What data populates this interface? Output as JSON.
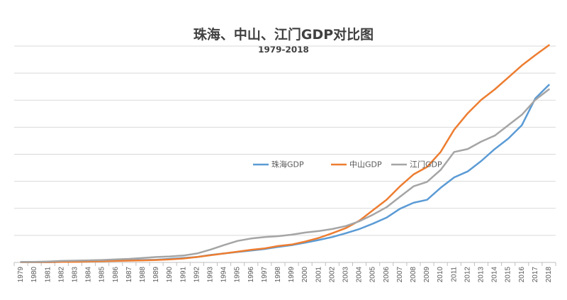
{
  "chart_data": {
    "type": "line",
    "title": "珠海、中山、江门GDP对比图",
    "subtitle": "1979-2018",
    "xlabel": "",
    "ylabel": "",
    "legend_position": "middle-right",
    "grid": true,
    "ylim": [
      0,
      7.25
    ],
    "categories": [
      "1979",
      "1980",
      "1981",
      "1982",
      "1983",
      "1984",
      "1985",
      "1986",
      "1987",
      "1988",
      "1989",
      "1990",
      "1991",
      "1992",
      "1993",
      "1994",
      "1995",
      "1996",
      "1997",
      "1998",
      "1999",
      "2000",
      "2001",
      "2002",
      "2003",
      "2004",
      "2005",
      "2006",
      "2007",
      "2008",
      "2009",
      "2010",
      "2011",
      "2012",
      "2013",
      "2014",
      "2015",
      "2016",
      "2017",
      "2018"
    ],
    "series": [
      {
        "name": "珠海GDP",
        "color": "#5b9bd5",
        "values": [
          0.01,
          0.01,
          0.01,
          0.02,
          0.03,
          0.04,
          0.05,
          0.06,
          0.07,
          0.08,
          0.09,
          0.12,
          0.15,
          0.18,
          0.25,
          0.3,
          0.35,
          0.4,
          0.45,
          0.52,
          0.58,
          0.66,
          0.75,
          0.85,
          0.98,
          1.12,
          1.3,
          1.5,
          1.8,
          2.0,
          2.1,
          2.5,
          2.85,
          3.05,
          3.4,
          3.8,
          4.15,
          4.6,
          5.5,
          5.95
        ]
      },
      {
        "name": "中山GDP",
        "color": "#ed7d31",
        "values": [
          0.01,
          0.01,
          0.01,
          0.02,
          0.02,
          0.03,
          0.04,
          0.05,
          0.06,
          0.07,
          0.08,
          0.1,
          0.13,
          0.18,
          0.24,
          0.3,
          0.36,
          0.42,
          0.47,
          0.55,
          0.6,
          0.7,
          0.82,
          0.98,
          1.15,
          1.4,
          1.75,
          2.1,
          2.55,
          2.95,
          3.2,
          3.7,
          4.45,
          5.0,
          5.45,
          5.8,
          6.2,
          6.6,
          6.95,
          7.28
        ]
      },
      {
        "name": "江门GDP",
        "color": "#a5a5a5",
        "values": [
          0.02,
          0.02,
          0.03,
          0.05,
          0.06,
          0.07,
          0.08,
          0.1,
          0.12,
          0.15,
          0.18,
          0.2,
          0.23,
          0.3,
          0.43,
          0.58,
          0.72,
          0.8,
          0.85,
          0.88,
          0.93,
          1.0,
          1.05,
          1.12,
          1.22,
          1.38,
          1.6,
          1.85,
          2.2,
          2.55,
          2.7,
          3.1,
          3.7,
          3.8,
          4.05,
          4.25,
          4.6,
          4.95,
          5.45,
          5.8
        ]
      }
    ]
  }
}
